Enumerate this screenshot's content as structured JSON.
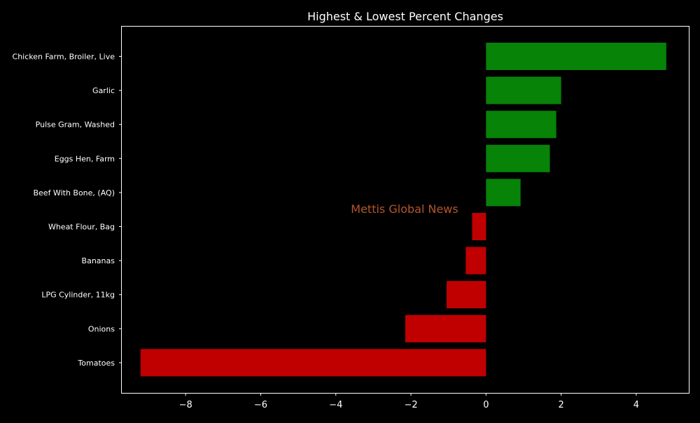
{
  "chart_data": {
    "type": "bar",
    "orientation": "horizontal",
    "title": "Highest & Lowest Percent Changes",
    "categories": [
      "Chicken Farm, Broiler, Live",
      "Garlic",
      "Pulse Gram, Washed",
      "Eggs Hen, Farm",
      "Beef With Bone, (AQ)",
      "Wheat Flour, Bag",
      "Bananas",
      "LPG Cylinder, 11kg",
      "Onions",
      "Tomatoes"
    ],
    "values": [
      4.8,
      2.0,
      1.87,
      1.7,
      0.92,
      -0.37,
      -0.54,
      -1.05,
      -2.15,
      -9.2
    ],
    "xlim": [
      -9.7,
      5.4
    ],
    "xticks": [
      -8,
      -6,
      -4,
      -2,
      0,
      2,
      4
    ],
    "xtick_labels": [
      "−8",
      "−6",
      "−4",
      "−2",
      "0",
      "2",
      "4"
    ],
    "xlabel": "",
    "ylabel": "",
    "grid": false,
    "colors": {
      "positive": "#078307",
      "negative": "#c00000",
      "background": "#000000",
      "axes": "#ffffff",
      "text": "#ffffff"
    }
  },
  "watermark": {
    "text": "Mettis Global News",
    "color": "#b5562b"
  }
}
